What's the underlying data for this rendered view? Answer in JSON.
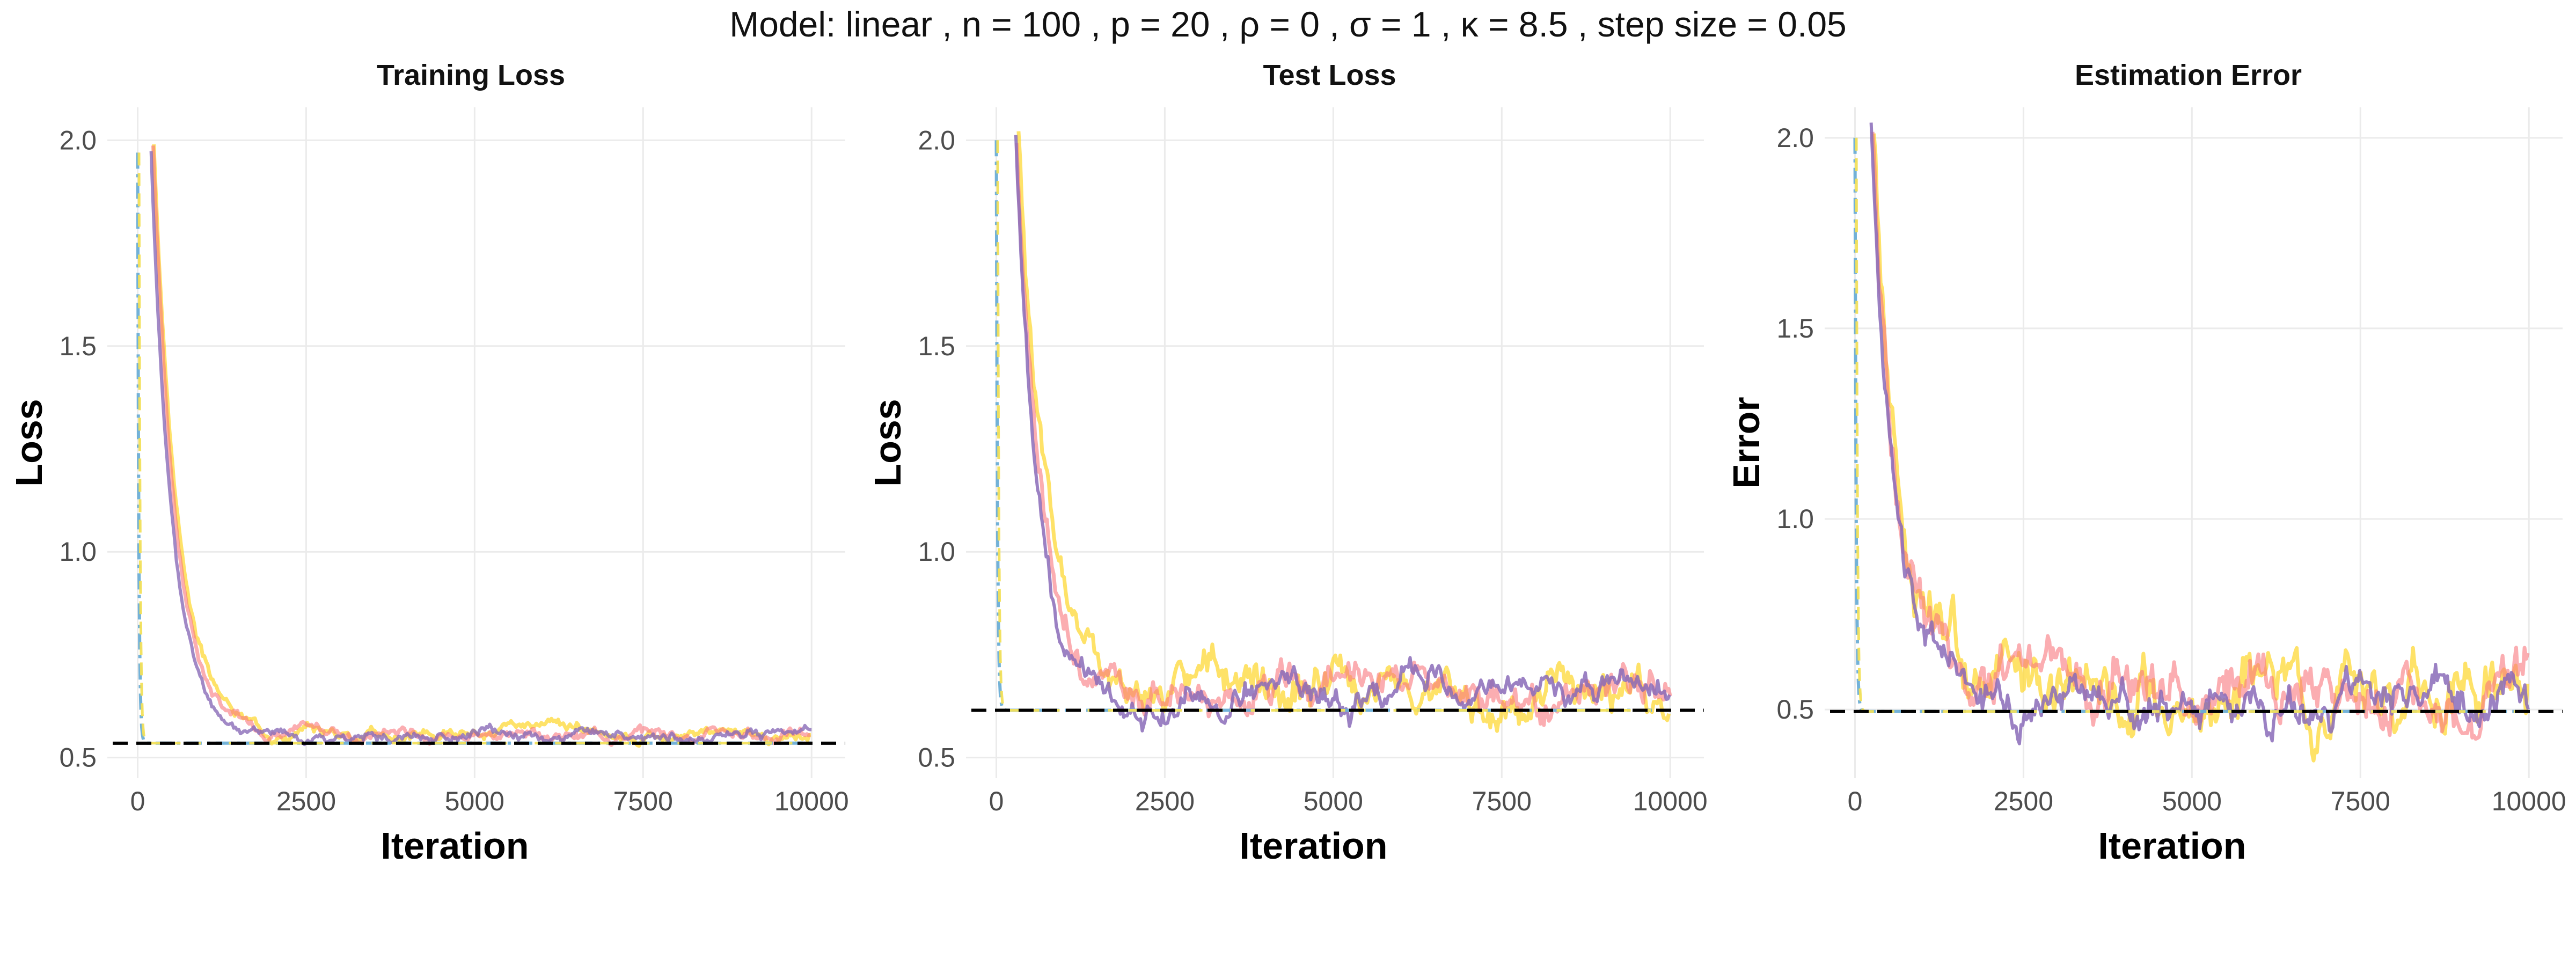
{
  "figure": {
    "title": "Model: linear ,  n = 100 ,  p = 20 ,  ρ = 0 ,  σ = 1 ,  κ = 8.5 , step size = 0.05"
  },
  "chart_data": [
    {
      "type": "line",
      "title": "Training Loss",
      "xlabel": "Iteration",
      "ylabel": "Loss",
      "xlim": [
        -450,
        10500
      ],
      "ylim": [
        0.45,
        2.08
      ],
      "x_ticks": [
        0,
        2500,
        5000,
        7500,
        10000
      ],
      "x_tick_labels": [
        "0",
        "2500",
        "5000",
        "7500",
        "10000"
      ],
      "y_ticks": [
        0.5,
        1.0,
        1.5,
        2.0
      ],
      "y_tick_labels": [
        "0.5",
        "1.0",
        "1.5",
        "2.0"
      ],
      "grid": true,
      "reference_line": {
        "y": 0.535,
        "color": "#000000",
        "style": "dashed"
      },
      "series": [
        {
          "color": "#fdd835",
          "opacity": 0.75,
          "width": 7,
          "decay": 0.0028,
          "start_x": 240,
          "start_y": 1.99,
          "plateau": 0.56,
          "noise": 0.012,
          "seed": 3
        },
        {
          "color": "#f8767d",
          "opacity": 0.6,
          "width": 7,
          "decay": 0.003,
          "start_x": 230,
          "start_y": 1.99,
          "plateau": 0.56,
          "noise": 0.012,
          "seed": 7
        },
        {
          "color": "#8a6bb8",
          "opacity": 0.8,
          "width": 6,
          "decay": 0.0032,
          "start_x": 200,
          "start_y": 1.97,
          "plateau": 0.555,
          "noise": 0.011,
          "seed": 11
        },
        {
          "color": "#6baed6",
          "opacity": 0.95,
          "width": 6,
          "decay": 0.06,
          "start_x": 0,
          "start_y": 1.97,
          "plateau": 0.535,
          "noise": 0,
          "seed": 1,
          "dash": "30,10,6,10"
        },
        {
          "color": "#f2e05a",
          "opacity": 0.95,
          "width": 5,
          "decay": 0.06,
          "start_x": 20,
          "start_y": 1.97,
          "plateau": 0.535,
          "noise": 0,
          "seed": 2,
          "dash": "24,14"
        }
      ]
    },
    {
      "type": "line",
      "title": "Test Loss",
      "xlabel": "Iteration",
      "ylabel": "Loss",
      "xlim": [
        -450,
        10500
      ],
      "ylim": [
        0.45,
        2.08
      ],
      "x_ticks": [
        0,
        2500,
        5000,
        7500,
        10000
      ],
      "x_tick_labels": [
        "0",
        "2500",
        "5000",
        "7500",
        "10000"
      ],
      "y_ticks": [
        0.5,
        1.0,
        1.5,
        2.0
      ],
      "y_tick_labels": [
        "0.5",
        "1.0",
        "1.5",
        "2.0"
      ],
      "grid": true,
      "reference_line": {
        "y": 0.615,
        "color": "#000000",
        "style": "dashed"
      },
      "series": [
        {
          "color": "#fdd835",
          "opacity": 0.75,
          "width": 7,
          "decay": 0.0027,
          "start_x": 330,
          "start_y": 2.0,
          "plateau": 0.66,
          "noise": 0.045,
          "seed": 5
        },
        {
          "color": "#f8767d",
          "opacity": 0.6,
          "width": 7,
          "decay": 0.0029,
          "start_x": 300,
          "start_y": 2.0,
          "plateau": 0.65,
          "noise": 0.04,
          "seed": 9
        },
        {
          "color": "#8a6bb8",
          "opacity": 0.85,
          "width": 6,
          "decay": 0.003,
          "start_x": 290,
          "start_y": 2.0,
          "plateau": 0.645,
          "noise": 0.032,
          "seed": 13
        },
        {
          "color": "#6baed6",
          "opacity": 0.95,
          "width": 6,
          "decay": 0.06,
          "start_x": 0,
          "start_y": 2.0,
          "plateau": 0.615,
          "noise": 0,
          "seed": 1,
          "dash": "30,10,6,10"
        },
        {
          "color": "#f2e05a",
          "opacity": 0.95,
          "width": 5,
          "decay": 0.06,
          "start_x": 20,
          "start_y": 2.0,
          "plateau": 0.615,
          "noise": 0,
          "seed": 2,
          "dash": "24,14"
        }
      ]
    },
    {
      "type": "line",
      "title": "Estimation Error",
      "xlabel": "Iteration",
      "ylabel": "Error",
      "xlim": [
        -450,
        10500
      ],
      "ylim": [
        0.32,
        2.08
      ],
      "x_ticks": [
        0,
        2500,
        5000,
        7500,
        10000
      ],
      "x_tick_labels": [
        "0",
        "2500",
        "5000",
        "7500",
        "10000"
      ],
      "y_ticks": [
        0.5,
        1.0,
        1.5,
        2.0
      ],
      "y_tick_labels": [
        "0.5",
        "1.0",
        "1.5",
        "2.0"
      ],
      "grid": true,
      "reference_line": {
        "y": 0.495,
        "color": "#000000",
        "style": "dashed"
      },
      "series": [
        {
          "color": "#fdd835",
          "opacity": 0.75,
          "width": 7,
          "decay": 0.0026,
          "start_x": 280,
          "start_y": 2.0,
          "plateau": 0.56,
          "noise": 0.07,
          "seed": 17
        },
        {
          "color": "#f8767d",
          "opacity": 0.6,
          "width": 7,
          "decay": 0.0028,
          "start_x": 260,
          "start_y": 2.0,
          "plateau": 0.57,
          "noise": 0.065,
          "seed": 19
        },
        {
          "color": "#8a6bb8",
          "opacity": 0.85,
          "width": 6,
          "decay": 0.003,
          "start_x": 240,
          "start_y": 2.0,
          "plateau": 0.54,
          "noise": 0.05,
          "seed": 23
        },
        {
          "color": "#6baed6",
          "opacity": 0.95,
          "width": 6,
          "decay": 0.06,
          "start_x": 0,
          "start_y": 2.0,
          "plateau": 0.495,
          "noise": 0,
          "seed": 1,
          "dash": "30,10,6,10"
        },
        {
          "color": "#f2e05a",
          "opacity": 0.95,
          "width": 5,
          "decay": 0.06,
          "start_x": 20,
          "start_y": 2.0,
          "plateau": 0.495,
          "noise": 0,
          "seed": 2,
          "dash": "24,14"
        }
      ]
    }
  ]
}
